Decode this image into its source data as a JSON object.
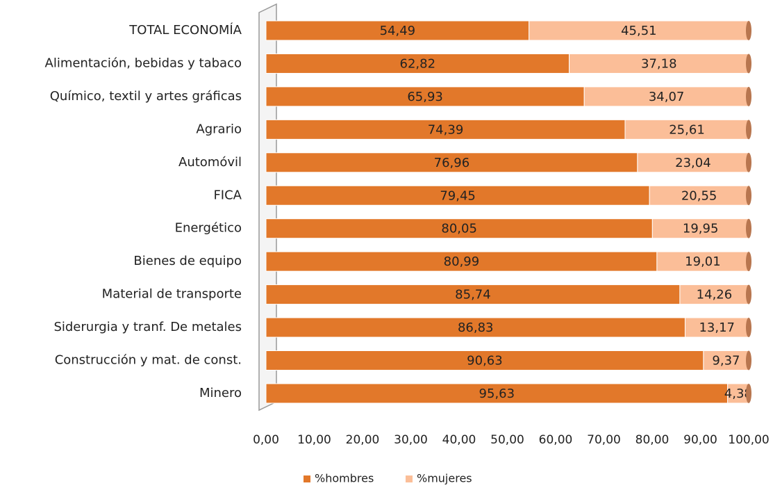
{
  "chart_data": {
    "type": "stacked_barh",
    "categories": [
      "TOTAL ECONOMÍA",
      "Alimentación, bebidas y tabaco",
      "Químico, textil y artes gráficas",
      "Agrario",
      "Automóvil",
      "FICA",
      "Energético",
      "Bienes de equipo",
      "Material de transporte",
      "Siderurgia y tranf. De metales",
      "Construcción y mat. de const.",
      "Minero"
    ],
    "series": [
      {
        "name": "%hombres",
        "color": "#e2782a",
        "values": [
          54.49,
          62.82,
          65.93,
          74.39,
          76.96,
          79.45,
          80.05,
          80.99,
          85.74,
          86.83,
          90.63,
          95.63
        ],
        "value_labels": [
          "54,49",
          "62,82",
          "65,93",
          "74,39",
          "76,96",
          "79,45",
          "80,05",
          "80,99",
          "85,74",
          "86,83",
          "90,63",
          "95,63"
        ]
      },
      {
        "name": "%mujeres",
        "color": "#fbbe98",
        "values": [
          45.51,
          37.18,
          34.07,
          25.61,
          23.04,
          20.55,
          19.95,
          19.01,
          14.26,
          13.17,
          9.37,
          4.38
        ],
        "value_labels": [
          "45,51",
          "37,18",
          "34,07",
          "25,61",
          "23,04",
          "20,55",
          "19,95",
          "19,01",
          "14,26",
          "13,17",
          "9,37",
          "4,38"
        ]
      }
    ],
    "xlim": [
      0,
      100
    ],
    "xticks": [
      {
        "value": 0,
        "label": "0,00"
      },
      {
        "value": 10,
        "label": "10,00"
      },
      {
        "value": 20,
        "label": "20,00"
      },
      {
        "value": 30,
        "label": "30,00"
      },
      {
        "value": 40,
        "label": "40,00"
      },
      {
        "value": 50,
        "label": "50,00"
      },
      {
        "value": 60,
        "label": "60,00"
      },
      {
        "value": 70,
        "label": "70,00"
      },
      {
        "value": 80,
        "label": "80,00"
      },
      {
        "value": 90,
        "label": "90,00"
      },
      {
        "value": 100,
        "label": "100,00"
      }
    ],
    "grid": false,
    "legend": "bottom"
  }
}
